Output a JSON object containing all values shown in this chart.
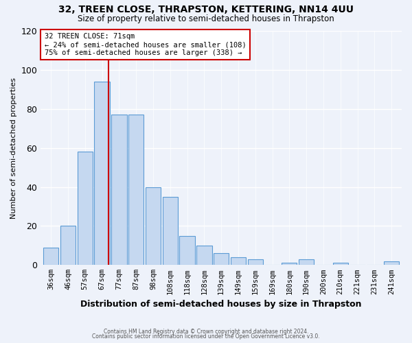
{
  "title": "32, TREEN CLOSE, THRAPSTON, KETTERING, NN14 4UU",
  "subtitle": "Size of property relative to semi-detached houses in Thrapston",
  "xlabel": "Distribution of semi-detached houses by size in Thrapston",
  "ylabel": "Number of semi-detached properties",
  "bar_labels": [
    "36sqm",
    "46sqm",
    "57sqm",
    "67sqm",
    "77sqm",
    "87sqm",
    "98sqm",
    "108sqm",
    "118sqm",
    "128sqm",
    "139sqm",
    "149sqm",
    "159sqm",
    "169sqm",
    "180sqm",
    "190sqm",
    "200sqm",
    "210sqm",
    "221sqm",
    "231sqm",
    "241sqm"
  ],
  "bar_values": [
    9,
    20,
    58,
    94,
    77,
    77,
    40,
    35,
    15,
    10,
    6,
    4,
    3,
    0,
    1,
    3,
    0,
    1,
    0,
    0,
    2
  ],
  "bar_color": "#c5d8f0",
  "bar_edge_color": "#5b9bd5",
  "ylim": [
    0,
    120
  ],
  "yticks": [
    0,
    20,
    40,
    60,
    80,
    100,
    120
  ],
  "marker_line_color": "#cc0000",
  "annotation_title": "32 TREEN CLOSE: 71sqm",
  "annotation_line1": "← 24% of semi-detached houses are smaller (108)",
  "annotation_line2": "75% of semi-detached houses are larger (338) →",
  "annotation_box_color": "#ffffff",
  "annotation_box_edge": "#cc0000",
  "footer1": "Contains HM Land Registry data © Crown copyright and database right 2024.",
  "footer2": "Contains public sector information licensed under the Open Government Licence v3.0.",
  "background_color": "#eef2fa",
  "plot_bg_color": "#eef2fa",
  "grid_color": "#ffffff"
}
